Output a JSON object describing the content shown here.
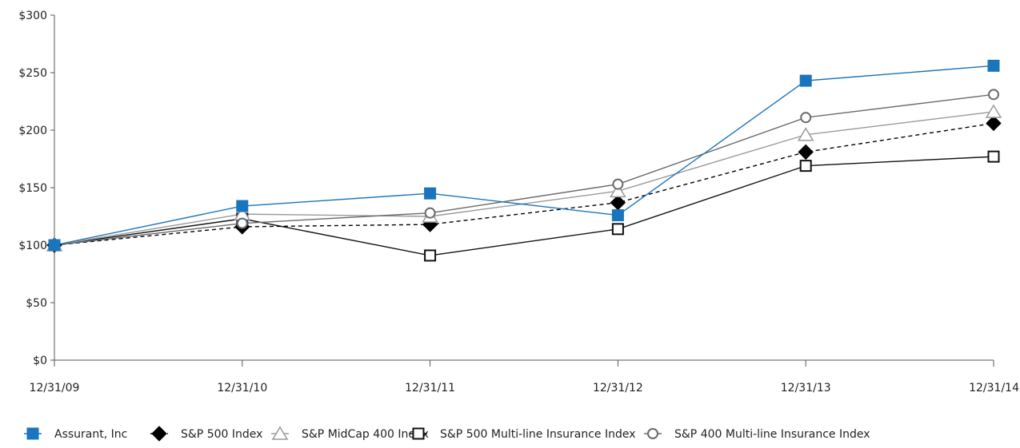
{
  "chart_data": {
    "type": "line",
    "categories": [
      "12/31/09",
      "12/31/10",
      "12/31/11",
      "12/31/12",
      "12/31/13",
      "12/31/14"
    ],
    "ylim": [
      0,
      300
    ],
    "yticks": [
      0,
      50,
      100,
      150,
      200,
      250,
      300
    ],
    "ytick_labels": [
      "$0",
      "$50",
      "$100",
      "$150",
      "$200",
      "$250",
      "$300"
    ],
    "grid": false,
    "legend_position": "bottom",
    "series": [
      {
        "name": "Assurant, Inc",
        "values": [
          100,
          134,
          145,
          126,
          243,
          256
        ],
        "color": "#1a75bc",
        "marker": "square-filled",
        "line_style": "solid"
      },
      {
        "name": "S&P 500 Index",
        "values": [
          100,
          116,
          118,
          137,
          181,
          206
        ],
        "color": "#000000",
        "marker": "diamond-filled",
        "line_style": "dashed"
      },
      {
        "name": "S&P MidCap 400 Index",
        "values": [
          100,
          127,
          125,
          147,
          196,
          216
        ],
        "color": "#9a9a9a",
        "marker": "triangle-open",
        "line_style": "solid"
      },
      {
        "name": "S&P 500 Multi-line Insurance Index",
        "values": [
          100,
          123,
          91,
          114,
          169,
          177
        ],
        "color": "#111111",
        "marker": "square-open",
        "line_style": "solid"
      },
      {
        "name": "S&P 400 Multi-line Insurance Index",
        "values": [
          100,
          119,
          128,
          153,
          211,
          231
        ],
        "color": "#6b6b6b",
        "marker": "circle-open",
        "line_style": "solid"
      }
    ]
  }
}
